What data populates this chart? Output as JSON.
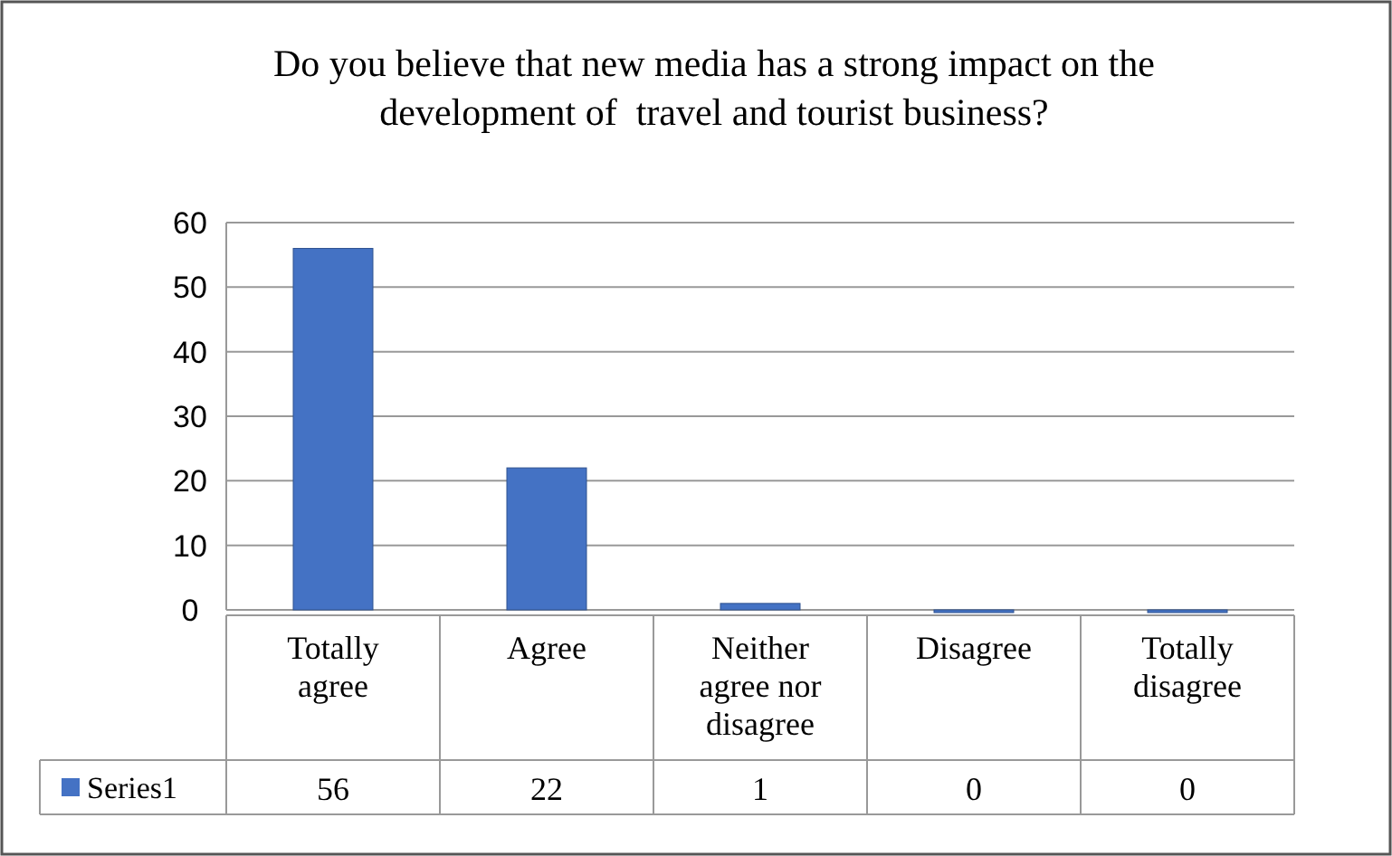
{
  "chart_data": {
    "type": "bar",
    "title": "Do you believe that new media has a strong impact on the development of  travel and tourist business?",
    "categories": [
      "Totally agree",
      "Agree",
      "Neither agree nor disagree",
      "Disagree",
      "Totally disagree"
    ],
    "series": [
      {
        "name": "Series1",
        "color": "#4472c4",
        "values": [
          56,
          22,
          1,
          0,
          0
        ]
      }
    ],
    "ylim": [
      0,
      60
    ],
    "yticks": [
      0,
      10,
      20,
      30,
      40,
      50,
      60
    ],
    "grid": "y",
    "data_labels": true,
    "legend": "bottom"
  }
}
